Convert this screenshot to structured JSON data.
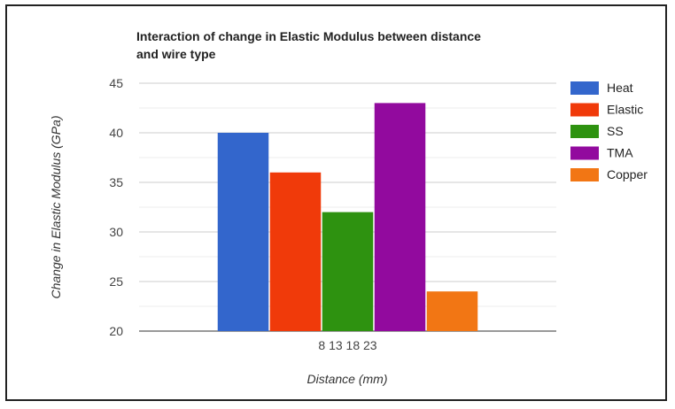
{
  "chart_data": {
    "type": "bar",
    "title_line1": "Interaction of change in Elastic Modulus between distance",
    "title_line2": "and wire type",
    "xlabel": "Distance (mm)",
    "ylabel": "Change in Elastic Modulus (GPa)",
    "categories": [
      "8 13 18 23"
    ],
    "ylim": [
      20,
      45
    ],
    "yticks": [
      20,
      25,
      30,
      35,
      40,
      45
    ],
    "grid": true,
    "legend_position": "right",
    "series": [
      {
        "name": "Heat",
        "values": [
          40
        ],
        "color": "#3366cc"
      },
      {
        "name": "Elastic",
        "values": [
          36
        ],
        "color": "#f03a0a"
      },
      {
        "name": "SS",
        "values": [
          32
        ],
        "color": "#2e9210"
      },
      {
        "name": "TMA",
        "values": [
          43
        ],
        "color": "#920a9e"
      },
      {
        "name": "Copper",
        "values": [
          24
        ],
        "color": "#f27614"
      }
    ]
  }
}
